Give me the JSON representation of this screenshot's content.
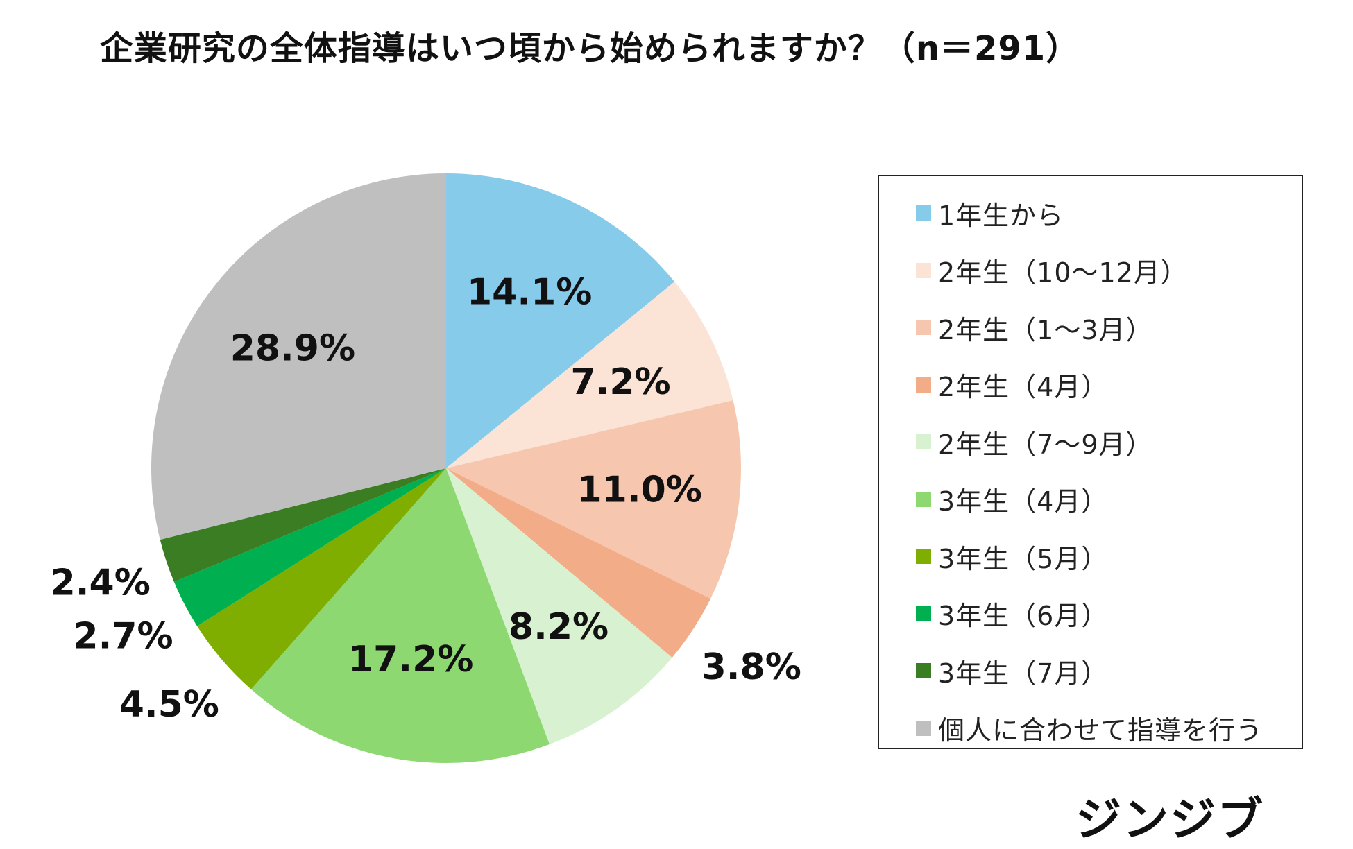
{
  "brand": {
    "logo_text": "ジンジブ"
  },
  "chart_data": {
    "type": "pie",
    "title": "企業研究の全体指導はいつ頃から始められますか？（n＝291）",
    "legend_position": "right",
    "start_angle": "top, clockwise",
    "slices": [
      {
        "label": "1年生から",
        "value": 14.1,
        "value_label": "14.1%",
        "color": "#86cbea",
        "label_placement": "inside"
      },
      {
        "label": "2年生（10～12月）",
        "value": 7.2,
        "value_label": "7.2%",
        "color": "#fbe3d6",
        "label_placement": "inside"
      },
      {
        "label": "2年生（1～3月）",
        "value": 11.0,
        "value_label": "11.0%",
        "color": "#f6c7ae",
        "label_placement": "inside"
      },
      {
        "label": "2年生（4月）",
        "value": 3.8,
        "value_label": "3.8%",
        "color": "#f2ac87",
        "label_placement": "outside"
      },
      {
        "label": "2年生（7～9月）",
        "value": 8.2,
        "value_label": "8.2%",
        "color": "#d8f2d1",
        "label_placement": "inside"
      },
      {
        "label": "3年生（4月）",
        "value": 17.2,
        "value_label": "17.2%",
        "color": "#8ed872",
        "label_placement": "inside"
      },
      {
        "label": "3年生（5月）",
        "value": 4.5,
        "value_label": "4.5%",
        "color": "#7fae00",
        "label_placement": "outside"
      },
      {
        "label": "3年生（6月）",
        "value": 2.7,
        "value_label": "2.7%",
        "color": "#00b050",
        "label_placement": "outside"
      },
      {
        "label": "3年生（7月）",
        "value": 2.4,
        "value_label": "2.4%",
        "color": "#3a7d22",
        "label_placement": "outside"
      },
      {
        "label": "個人に合わせて指導を行う",
        "value": 28.9,
        "value_label": "28.9%",
        "color": "#bfbfbf",
        "label_placement": "inside"
      }
    ]
  }
}
